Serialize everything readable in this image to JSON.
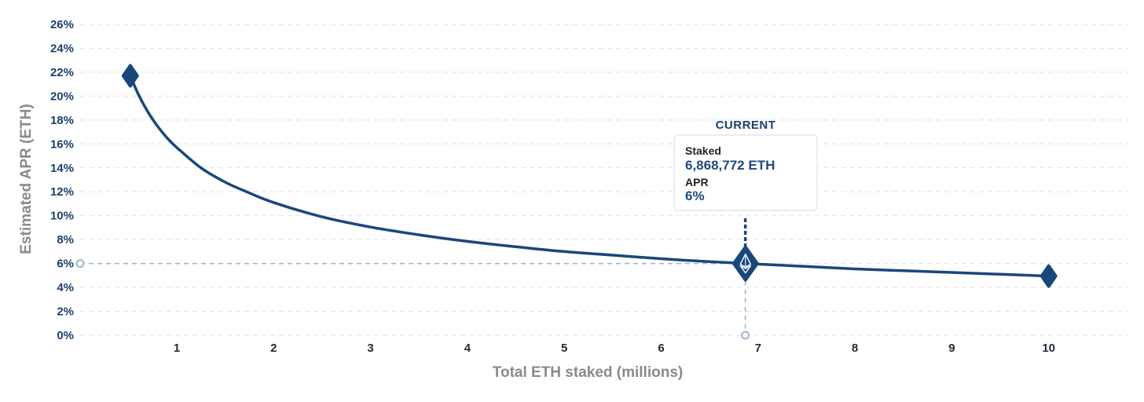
{
  "chart_data": {
    "type": "line",
    "xlabel": "Total ETH staked (millions)",
    "ylabel": "Estimated APR (ETH)",
    "xlim": [
      0,
      11
    ],
    "ylim": [
      0,
      26
    ],
    "x_ticks": [
      1,
      2,
      3,
      4,
      5,
      6,
      7,
      8,
      9,
      10
    ],
    "y_ticks": [
      0,
      2,
      4,
      6,
      8,
      10,
      12,
      14,
      16,
      18,
      20,
      22,
      24,
      26
    ],
    "y_tick_labels": [
      "0%",
      "2%",
      "4%",
      "6%",
      "8%",
      "10%",
      "12%",
      "14%",
      "16%",
      "18%",
      "20%",
      "22%",
      "24%",
      "26%"
    ],
    "grid": true,
    "series": [
      {
        "color": "#1a477a",
        "x": [
          0.52,
          0.6,
          0.7,
          0.8,
          0.9,
          1.0,
          1.25,
          1.5,
          1.75,
          2.0,
          2.5,
          3.0,
          3.5,
          4.0,
          4.5,
          5.0,
          5.5,
          6.0,
          6.5,
          7.0,
          7.5,
          8.0,
          8.5,
          9.0,
          9.5,
          10.0
        ],
        "y": [
          21.7,
          20.2,
          18.7,
          17.5,
          16.5,
          15.7,
          14.0,
          12.8,
          11.9,
          11.1,
          9.9,
          9.05,
          8.4,
          7.85,
          7.4,
          7.0,
          6.7,
          6.4,
          6.15,
          5.95,
          5.75,
          5.55,
          5.4,
          5.25,
          5.1,
          4.95
        ]
      }
    ],
    "markers": [
      {
        "x": 0.52,
        "y": 21.7,
        "shape": "diamond"
      },
      {
        "x": 10.0,
        "y": 4.95,
        "shape": "diamond"
      },
      {
        "x": 6.87,
        "y": 6.0,
        "shape": "eth-diamond"
      }
    ],
    "current": {
      "x": 6.868772,
      "y": 6,
      "title": "CURRENT",
      "staked_label": "Staked",
      "staked_value": "6,868,772 ETH",
      "apr_label": "APR",
      "apr_value": "6%"
    },
    "colors": {
      "line": "#1a477a",
      "guide": "#9fb5cc",
      "grid": "#dfe3e8"
    }
  }
}
